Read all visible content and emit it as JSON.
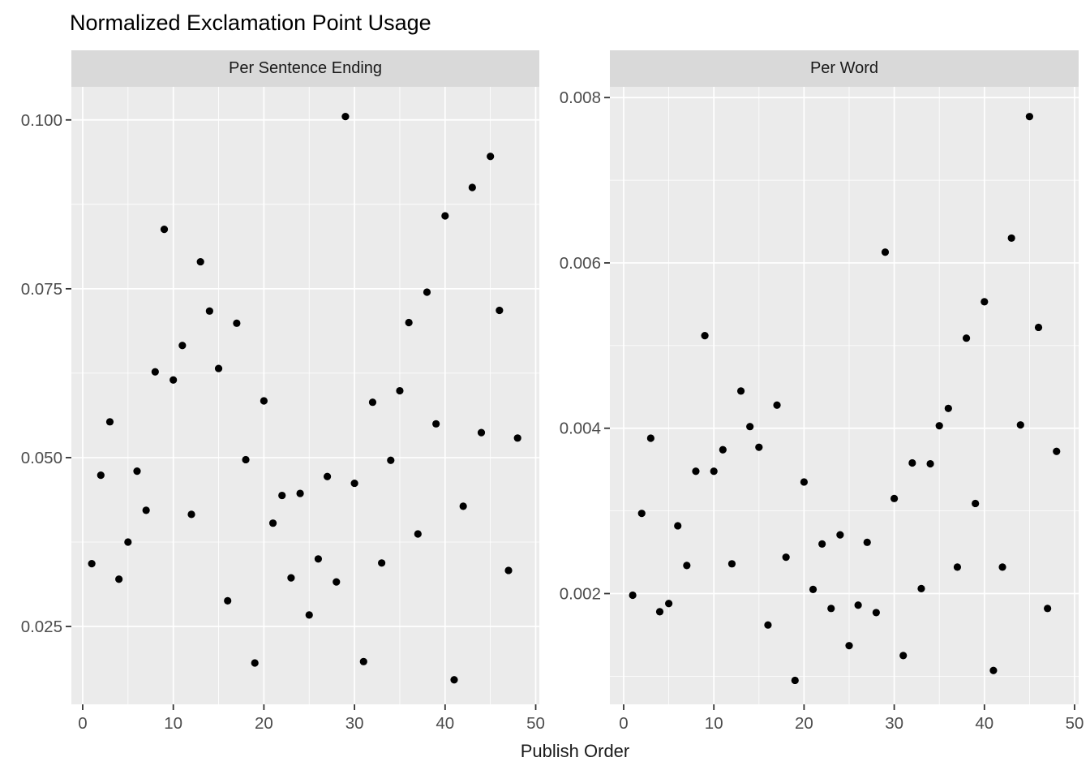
{
  "page": {
    "title": "Normalized Exclamation Point Usage",
    "xlabel": "Publish Order"
  },
  "style": {
    "point_color": "#000000",
    "panel_bg": "#EBEBEB",
    "strip_bg": "#D9D9D9",
    "gridline_color": "#FFFFFF",
    "tick_mark_color": "#333333",
    "axis_text_color": "#4D4D4D",
    "title_text_color": "#000000",
    "strip_text_color": "#1A1A1A"
  },
  "chart_data": {
    "type": "scatter",
    "title": "Normalized Exclamation Point Usage",
    "xlabel": "Publish Order",
    "ylabel": "",
    "grid": true,
    "legend": false,
    "facets": [
      {
        "label": "Per Sentence Ending",
        "xlim": [
          -1.25,
          50.4
        ],
        "ylim": [
          0.01347,
          0.1049
        ],
        "x_ticks": [
          0,
          10,
          20,
          30,
          40,
          50
        ],
        "x_tick_labels": [
          "0",
          "10",
          "20",
          "30",
          "40",
          "50"
        ],
        "x_minor": [
          5,
          15,
          25,
          35,
          45
        ],
        "y_ticks": [
          0.025,
          0.05,
          0.075,
          0.1
        ],
        "y_tick_labels": [
          "0.025",
          "0.050",
          "0.075",
          "0.100"
        ],
        "y_minor": [
          0.0375,
          0.0625,
          0.0875
        ],
        "x": [
          1,
          2,
          3,
          4,
          5,
          6,
          7,
          8,
          9,
          10,
          11,
          12,
          13,
          14,
          15,
          16,
          17,
          18,
          19,
          20,
          21,
          22,
          23,
          24,
          25,
          26,
          27,
          28,
          29,
          30,
          31,
          32,
          33,
          34,
          35,
          36,
          37,
          38,
          39,
          40,
          41,
          42,
          43,
          44,
          45,
          46,
          47,
          48
        ],
        "y": [
          0.0343,
          0.0474,
          0.0553,
          0.032,
          0.0375,
          0.048,
          0.0422,
          0.0627,
          0.0838,
          0.0615,
          0.0666,
          0.0416,
          0.079,
          0.0717,
          0.0632,
          0.0288,
          0.0699,
          0.0497,
          0.0196,
          0.0584,
          0.0403,
          0.0444,
          0.0322,
          0.0447,
          0.0267,
          0.035,
          0.0472,
          0.0316,
          0.1005,
          0.0462,
          0.0198,
          0.0582,
          0.0344,
          0.0496,
          0.0599,
          0.07,
          0.0387,
          0.0745,
          0.055,
          0.0858,
          0.0171,
          0.0428,
          0.09,
          0.0537,
          0.0946,
          0.0718,
          0.0333,
          0.0529
        ]
      },
      {
        "label": "Per Word",
        "xlim": [
          -1.53,
          50.45
        ],
        "ylim": [
          0.00066,
          0.00813
        ],
        "x_ticks": [
          0,
          10,
          20,
          30,
          40,
          50
        ],
        "x_tick_labels": [
          "0",
          "10",
          "20",
          "30",
          "40",
          "50"
        ],
        "x_minor": [
          5,
          15,
          25,
          35,
          45
        ],
        "y_ticks": [
          0.002,
          0.004,
          0.006,
          0.008
        ],
        "y_tick_labels": [
          "0.002",
          "0.004",
          "0.006",
          "0.008"
        ],
        "y_minor": [
          0.001,
          0.003,
          0.005,
          0.007
        ],
        "x": [
          1,
          2,
          3,
          4,
          5,
          6,
          7,
          8,
          9,
          10,
          11,
          12,
          13,
          14,
          15,
          16,
          17,
          18,
          19,
          20,
          21,
          22,
          23,
          24,
          25,
          26,
          27,
          28,
          29,
          30,
          31,
          32,
          33,
          34,
          35,
          36,
          37,
          38,
          39,
          40,
          41,
          42,
          43,
          44,
          45,
          46,
          47,
          48
        ],
        "y": [
          0.00198,
          0.00297,
          0.00388,
          0.00178,
          0.00188,
          0.00282,
          0.00234,
          0.00348,
          0.00512,
          0.00348,
          0.00374,
          0.00236,
          0.00445,
          0.00402,
          0.00377,
          0.00162,
          0.00428,
          0.00244,
          0.00095,
          0.00335,
          0.00205,
          0.0026,
          0.00182,
          0.00271,
          0.00137,
          0.00186,
          0.00262,
          0.00177,
          0.00613,
          0.00315,
          0.00125,
          0.00358,
          0.00206,
          0.00357,
          0.00403,
          0.00424,
          0.00232,
          0.00509,
          0.00309,
          0.00553,
          0.00107,
          0.00232,
          0.0063,
          0.00404,
          0.00777,
          0.00522,
          0.00182,
          0.00372
        ]
      }
    ]
  }
}
